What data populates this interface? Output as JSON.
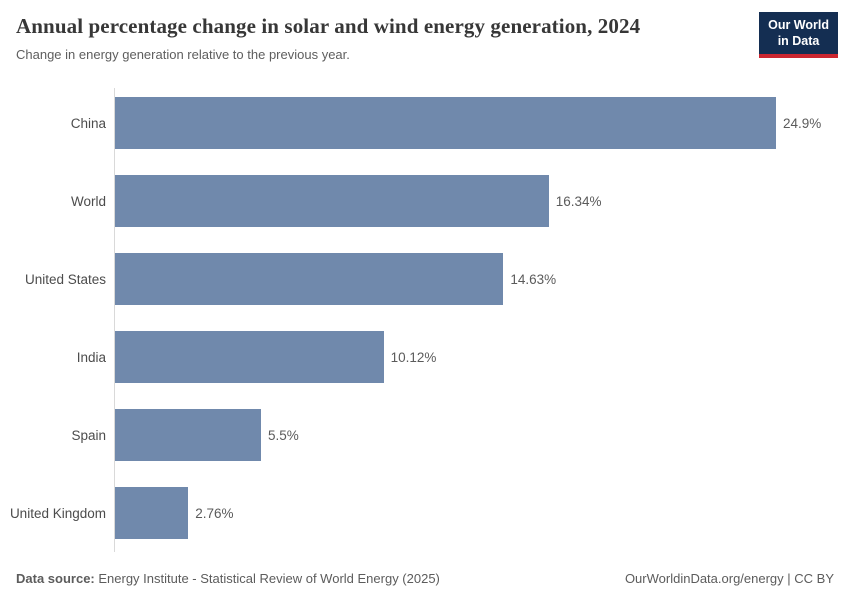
{
  "header": {
    "title": "Annual percentage change in solar and wind energy generation, 2024",
    "subtitle": "Change in energy generation relative to the previous year."
  },
  "logo": {
    "line1": "Our World",
    "line2": "in Data"
  },
  "chart_data": {
    "type": "bar",
    "orientation": "horizontal",
    "title": "Annual percentage change in solar and wind energy generation, 2024",
    "subtitle": "Change in energy generation relative to the previous year.",
    "categories": [
      "China",
      "World",
      "United States",
      "India",
      "Spain",
      "United Kingdom"
    ],
    "values": [
      24.9,
      16.34,
      14.63,
      10.12,
      5.5,
      2.76
    ],
    "value_labels": [
      "24.9%",
      "16.34%",
      "14.63%",
      "10.12%",
      "5.5%",
      "2.76%"
    ],
    "unit": "%",
    "xlim": [
      0,
      24.9
    ],
    "grid": false,
    "legend": "none"
  },
  "colors": {
    "bar": "#7089ac",
    "logo_background": "#142e52",
    "logo_accent": "#cb2630",
    "axis_line": "#d9d9d9"
  },
  "footer": {
    "source_label": "Data source:",
    "source_text": " Energy Institute - Statistical Review of World Energy (2025)",
    "credit": "OurWorldinData.org/energy | CC BY"
  }
}
